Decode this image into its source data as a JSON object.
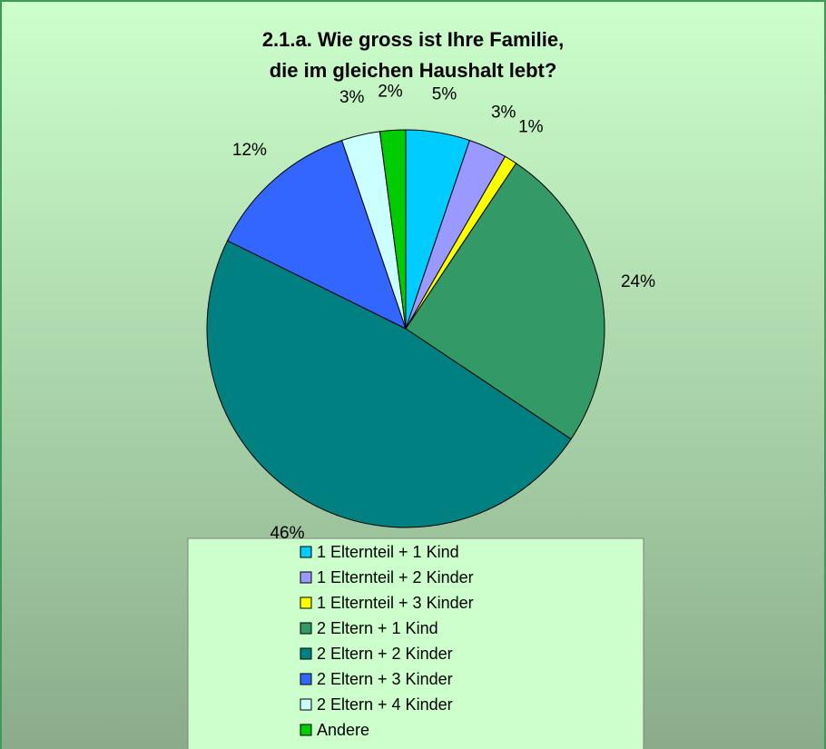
{
  "chart_data": {
    "type": "pie",
    "title": "2.1.a. Wie gross ist Ihre Familie, die im gleichen Haushalt lebt?",
    "title_lines": [
      "2.1.a. Wie gross ist Ihre Familie,",
      "die im gleichen Haushalt  lebt?"
    ],
    "categories": [
      "1 Elternteil + 1 Kind",
      "1 Elternteil + 2 Kinder",
      "1 Elternteil + 3 Kinder",
      "2 Eltern + 1 Kind",
      "2 Eltern + 2 Kinder",
      "2 Eltern + 3 Kinder",
      "2 Eltern + 4 Kinder",
      "Andere"
    ],
    "values": [
      5,
      3,
      1,
      24,
      46,
      12,
      3,
      2
    ],
    "value_labels": [
      "5%",
      "3%",
      "1%",
      "24%",
      "46%",
      "12%",
      "3%",
      "2%"
    ],
    "colors": [
      "#00ccff",
      "#9999ff",
      "#ffff00",
      "#339966",
      "#008080",
      "#3366ff",
      "#ccffff",
      "#00cc00"
    ],
    "legend": "bottom"
  }
}
